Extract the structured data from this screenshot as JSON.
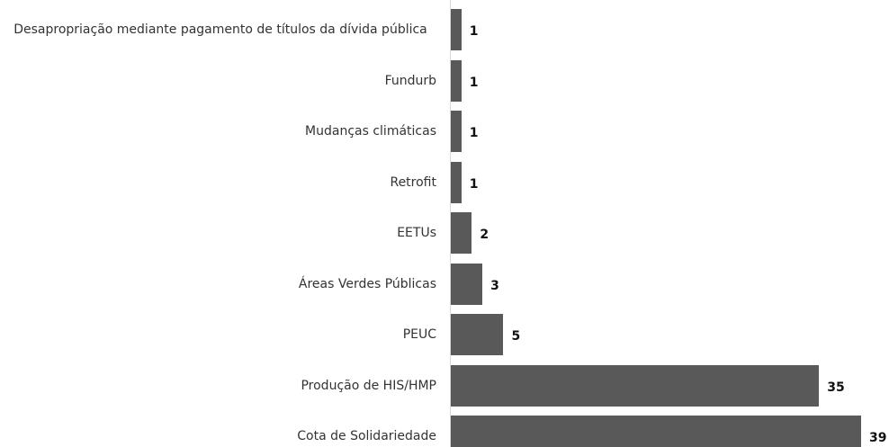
{
  "chart_data": {
    "type": "bar",
    "orientation": "horizontal",
    "categories": [
      "Desapropriação mediante pagamento de títulos da dívida pública",
      "Fundurb",
      "Mudanças climáticas",
      "Retrofit",
      "EETUs",
      "Áreas Verdes Públicas",
      "PEUC",
      "Produção de HIS/HMP",
      "Cota de Solidariedade"
    ],
    "values": [
      1,
      1,
      1,
      1,
      2,
      3,
      5,
      35,
      39
    ],
    "color": "#595959"
  }
}
